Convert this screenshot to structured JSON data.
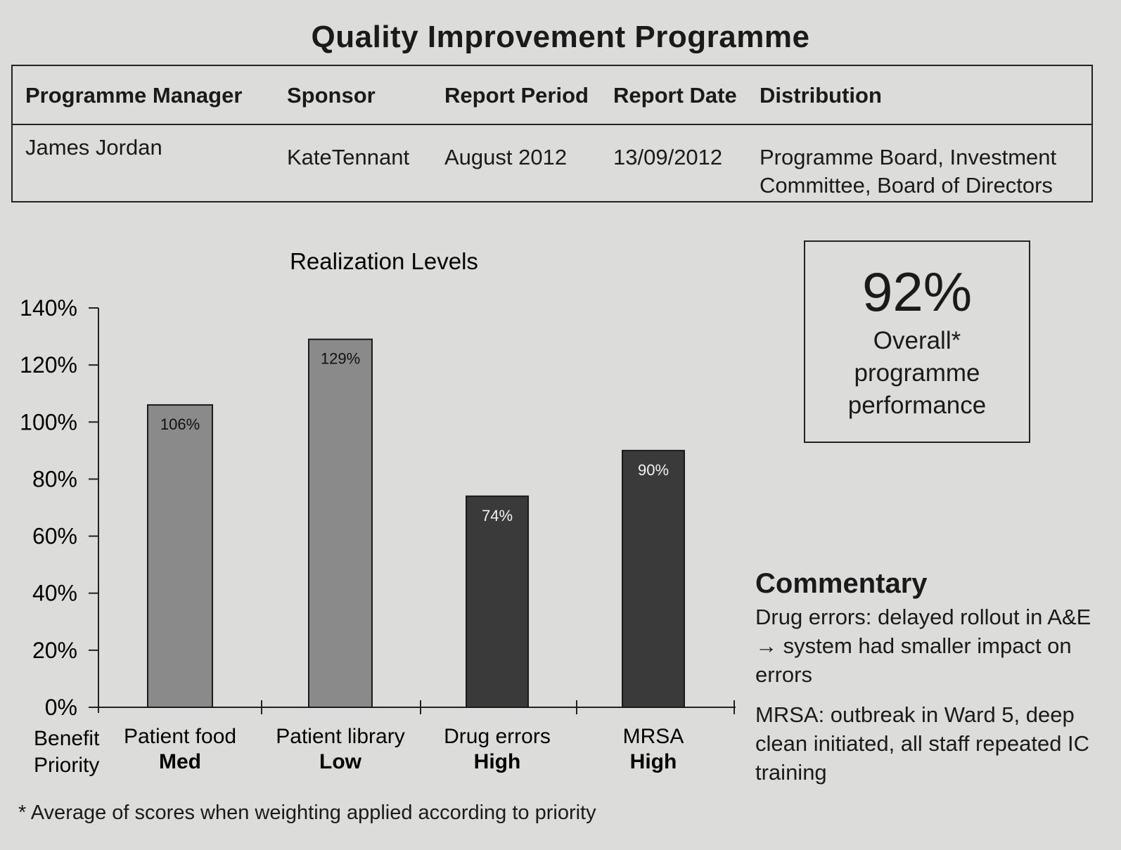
{
  "page_title": "Quality Improvement Programme",
  "info_table": {
    "headers": [
      "Programme Manager",
      "Sponsor",
      "Report Period",
      "Report Date",
      "Distribution"
    ],
    "values": [
      "James Jordan",
      "KateTennant",
      "August 2012",
      "13/09/2012",
      "Programme Board, Investment Committee, Board of Directors"
    ]
  },
  "chart_data": {
    "type": "bar",
    "title": "Realization Levels",
    "categories": [
      "Patient food",
      "Patient library",
      "Drug errors",
      "MRSA"
    ],
    "priorities": [
      "Med",
      "Low",
      "High",
      "High"
    ],
    "values": [
      106,
      129,
      74,
      90
    ],
    "value_labels": [
      "106%",
      "129%",
      "74%",
      "90%"
    ],
    "bar_colors": [
      "#8a8a8a",
      "#8a8a8a",
      "#3a3a3a",
      "#3a3a3a"
    ],
    "bar_label_colors": [
      "#111111",
      "#111111",
      "#f2f2f2",
      "#f2f2f2"
    ],
    "ylim": [
      0,
      140
    ],
    "yticks": [
      0,
      20,
      40,
      60,
      80,
      100,
      120,
      140
    ],
    "ytick_labels": [
      "0%",
      "20%",
      "40%",
      "60%",
      "80%",
      "100%",
      "120%",
      "140%"
    ],
    "xlabel_lines": [
      "Benefit",
      "Priority"
    ],
    "grid": false
  },
  "score": {
    "value": "92%",
    "caption_lines": [
      "Overall*",
      "programme",
      "performance"
    ]
  },
  "commentary": {
    "title": "Commentary",
    "paragraphs": [
      "Drug errors: delayed rollout in A&E → system had smaller impact on errors",
      "MRSA: outbreak in Ward 5, deep clean initiated, all staff repeated IC training"
    ]
  },
  "footnote": "* Average of scores when weighting applied according to priority"
}
